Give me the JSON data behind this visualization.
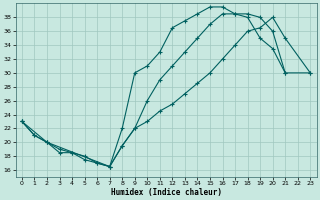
{
  "title": "",
  "xlabel": "Humidex (Indice chaleur)",
  "background_color": "#c8e8e0",
  "grid_color": "#a0c8c0",
  "line_color": "#006060",
  "xlim": [
    -0.5,
    23.5
  ],
  "ylim": [
    15.0,
    40.0
  ],
  "yticks": [
    16,
    18,
    20,
    22,
    24,
    26,
    28,
    30,
    32,
    34,
    36,
    38
  ],
  "xticks": [
    0,
    1,
    2,
    3,
    4,
    5,
    6,
    7,
    8,
    9,
    10,
    11,
    12,
    13,
    14,
    15,
    16,
    17,
    18,
    19,
    20,
    21,
    22,
    23
  ],
  "line1_x": [
    0,
    1,
    2,
    3,
    4,
    5,
    6,
    7,
    8,
    9,
    10,
    11,
    12,
    13,
    14,
    15,
    16,
    17,
    18,
    19,
    20,
    21
  ],
  "line1_y": [
    23,
    21,
    20,
    18.5,
    18.5,
    17.5,
    17,
    16.5,
    22,
    30,
    31,
    33,
    36.5,
    37.5,
    38.5,
    39.5,
    39.5,
    38.5,
    38.5,
    38,
    36,
    30
  ],
  "line2_x": [
    0,
    1,
    2,
    3,
    4,
    5,
    6,
    7,
    8,
    9,
    10,
    11,
    12,
    13,
    14,
    15,
    16,
    17,
    18,
    19,
    20,
    21,
    23
  ],
  "line2_y": [
    23,
    21,
    20,
    19,
    18.5,
    18,
    17,
    16.5,
    19.5,
    22,
    26,
    29,
    31,
    33,
    35,
    37,
    38.5,
    38.5,
    38,
    35,
    33.5,
    30,
    30
  ],
  "line3_x": [
    0,
    2,
    7,
    8,
    9,
    10,
    11,
    12,
    13,
    14,
    15,
    16,
    17,
    18,
    19,
    20,
    21,
    23
  ],
  "line3_y": [
    23,
    20,
    16.5,
    19.5,
    22,
    23,
    24.5,
    25.5,
    27,
    28.5,
    30,
    32,
    34,
    36,
    36.5,
    38,
    35,
    30
  ]
}
